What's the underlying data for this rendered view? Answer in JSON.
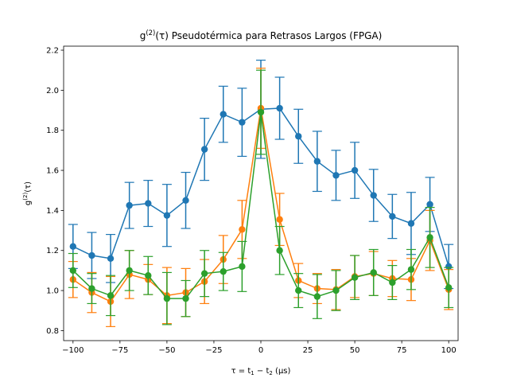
{
  "chart_data": {
    "type": "line",
    "title": "g(2)(τ) Pseudotérmica para Retrasos Largos (FPGA)",
    "title_parts": {
      "g": "g",
      "sup": "(2)",
      "rest": "(τ) Pseudotérmica para Retrasos Largos (FPGA)"
    },
    "xlabel": "τ = t1 − t2 (μs)",
    "xlabel_parts": {
      "pre": "τ = t",
      "s1": "1",
      "mid": " − t",
      "s2": "2",
      "post": " (μs)"
    },
    "ylabel": "g(2)(τ)",
    "ylabel_parts": {
      "g": "g",
      "sup": "(2)",
      "rest": "(τ)"
    },
    "xlim": [
      -105,
      105
    ],
    "ylim": [
      0.75,
      2.22
    ],
    "xticks": [
      -100,
      -75,
      -50,
      -25,
      0,
      25,
      50,
      75,
      100
    ],
    "yticks": [
      0.8,
      1.0,
      1.2,
      1.4,
      1.6,
      1.8,
      2.0,
      2.2
    ],
    "x": [
      -100,
      -90,
      -80,
      -70,
      -60,
      -50,
      -40,
      -30,
      -20,
      -10,
      0,
      10,
      20,
      30,
      40,
      50,
      60,
      70,
      80,
      90,
      100
    ],
    "grid": false,
    "legend": "none",
    "series": [
      {
        "color": "#1f77b4",
        "values": [
          1.22,
          1.175,
          1.16,
          1.425,
          1.435,
          1.375,
          1.45,
          1.705,
          1.88,
          1.84,
          1.905,
          1.91,
          1.77,
          1.645,
          1.575,
          1.6,
          1.475,
          1.37,
          1.335,
          1.43,
          1.12
        ],
        "errors": [
          0.11,
          0.115,
          0.12,
          0.115,
          0.115,
          0.155,
          0.14,
          0.155,
          0.14,
          0.17,
          0.245,
          0.155,
          0.135,
          0.15,
          0.125,
          0.14,
          0.13,
          0.11,
          0.155,
          0.135,
          0.11
        ]
      },
      {
        "color": "#ff7f0e",
        "values": [
          1.055,
          0.99,
          0.945,
          1.08,
          1.055,
          0.975,
          0.99,
          1.045,
          1.155,
          1.305,
          1.91,
          1.355,
          1.05,
          1.01,
          1.005,
          1.07,
          1.085,
          1.06,
          1.055,
          1.25,
          1.005
        ],
        "errors": [
          0.09,
          0.1,
          0.125,
          0.12,
          0.075,
          0.14,
          0.12,
          0.11,
          0.12,
          0.145,
          0.2,
          0.13,
          0.085,
          0.075,
          0.1,
          0.105,
          0.11,
          0.09,
          0.105,
          0.15,
          0.1
        ]
      },
      {
        "color": "#2ca02c",
        "values": [
          1.1,
          1.01,
          0.975,
          1.1,
          1.075,
          0.96,
          0.96,
          1.085,
          1.095,
          1.12,
          1.89,
          1.2,
          1.0,
          0.97,
          1.0,
          1.065,
          1.09,
          1.04,
          1.105,
          1.265,
          1.015
        ],
        "errors": [
          0.085,
          0.075,
          0.1,
          0.1,
          0.095,
          0.13,
          0.09,
          0.115,
          0.095,
          0.125,
          0.21,
          0.12,
          0.085,
          0.11,
          0.1,
          0.11,
          0.115,
          0.085,
          0.1,
          0.15,
          0.1
        ]
      }
    ]
  }
}
